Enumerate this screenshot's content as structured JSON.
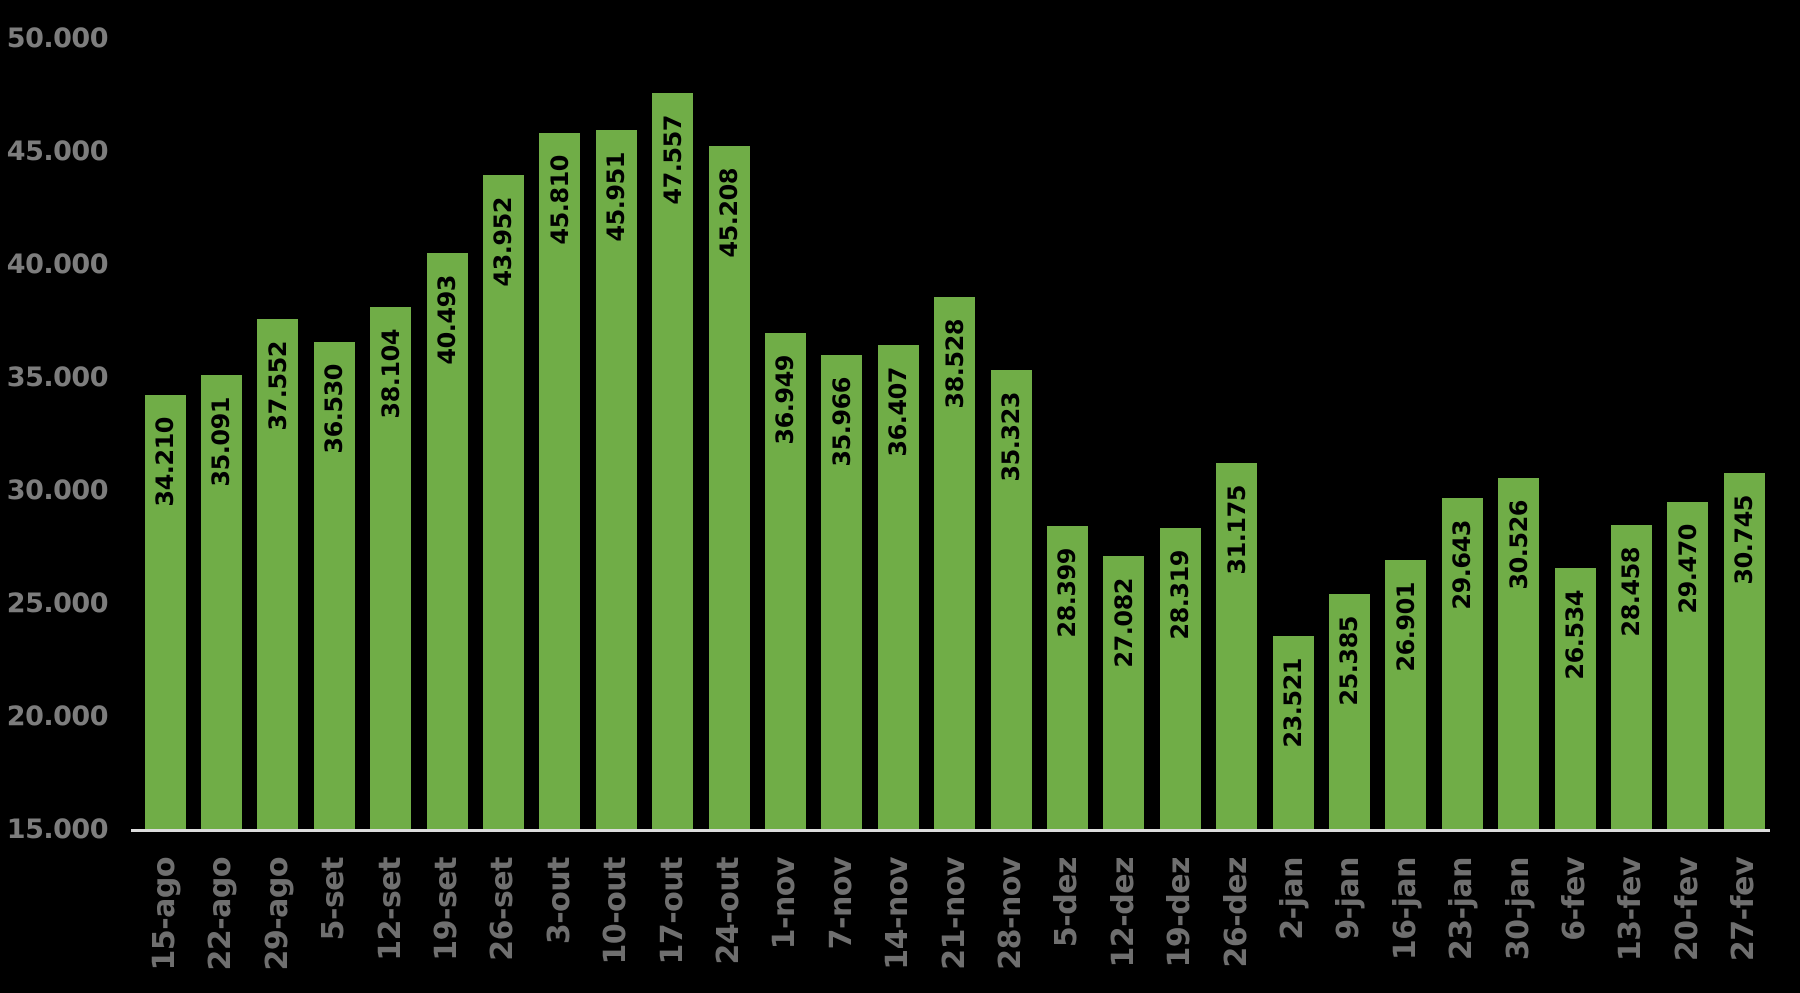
{
  "chart_data": {
    "type": "bar",
    "title": "",
    "xlabel": "",
    "ylabel": "",
    "categories": [
      "15-ago",
      "22-ago",
      "29-ago",
      "5-set",
      "12-set",
      "19-set",
      "26-set",
      "3-out",
      "10-out",
      "17-out",
      "24-out",
      "1-nov",
      "7-nov",
      "14-nov",
      "21-nov",
      "28-nov",
      "5-dez",
      "12-dez",
      "19-dez",
      "26-dez",
      "2-jan",
      "9-jan",
      "16-jan",
      "23-jan",
      "30-jan",
      "6-fev",
      "13-fev",
      "20-fev",
      "27-fev"
    ],
    "values": [
      34210,
      35091,
      37552,
      36530,
      38104,
      40493,
      43952,
      45810,
      45951,
      47557,
      45208,
      36949,
      35966,
      36407,
      38528,
      35323,
      28399,
      27082,
      28319,
      31175,
      23521,
      25385,
      26901,
      29643,
      30526,
      26534,
      28458,
      29470,
      30745
    ],
    "value_labels": [
      "34.210",
      "35.091",
      "37.552",
      "36.530",
      "38.104",
      "40.493",
      "43.952",
      "45.810",
      "45.951",
      "47.557",
      "45.208",
      "36.949",
      "35.966",
      "36.407",
      "38.528",
      "35.323",
      "28.399",
      "27.082",
      "28.319",
      "31.175",
      "23.521",
      "25.385",
      "26.901",
      "29.643",
      "30.526",
      "26.534",
      "28.458",
      "29.470",
      "30.745"
    ],
    "ylim": [
      15000,
      50000
    ],
    "yticks": [
      50000,
      45000,
      40000,
      35000,
      30000,
      25000,
      20000,
      15000
    ],
    "ytick_labels": [
      "50.000",
      "45.000",
      "40.000",
      "35.000",
      "30.000",
      "25.000",
      "20.000",
      "15.000"
    ],
    "grid": "off",
    "legend": "none",
    "colors": {
      "bar": "#70AD47",
      "data_label": "#000000",
      "y_tick_text": "#7d7d7d",
      "x_tick_text": "#6f6f6f",
      "axis_line": "#dcdcdc",
      "background": "#000000"
    }
  }
}
